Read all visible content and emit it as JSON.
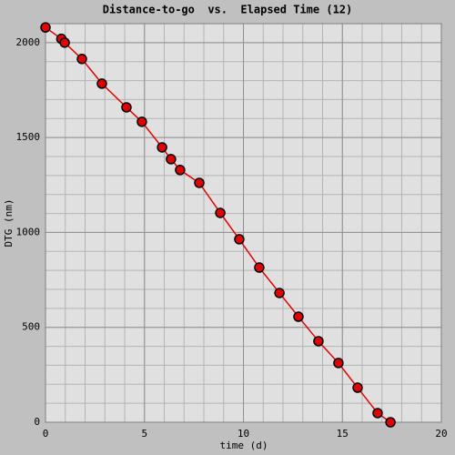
{
  "chart_data": {
    "type": "line",
    "title": "Distance-to-go  vs.  Elapsed Time (12)",
    "x_label": "time (d)",
    "y_label": "DTG (nm)",
    "x": [
      0,
      0.8,
      0.97,
      1.84,
      2.85,
      4.09,
      4.87,
      5.89,
      6.34,
      6.8,
      7.77,
      8.83,
      9.79,
      10.8,
      11.82,
      12.78,
      13.79,
      14.8,
      15.77,
      16.78,
      17.43
    ],
    "series": [
      {
        "name": "DTG",
        "color": "#e00000",
        "marker_color": "#e00000",
        "values": [
          2080,
          2020,
          2000,
          1914,
          1784,
          1659,
          1583,
          1448,
          1386,
          1329,
          1261,
          1103,
          964,
          815,
          681,
          556,
          427,
          312,
          182,
          48,
          0
        ]
      }
    ],
    "xlim": [
      0,
      20
    ],
    "xticks": [
      0,
      5,
      10,
      15,
      20
    ],
    "ylim": [
      0,
      2100
    ],
    "yticks": [
      0,
      500,
      1000,
      1500,
      2000
    ],
    "grid": true,
    "minor_grid": {
      "x": 1,
      "y": 100
    }
  }
}
